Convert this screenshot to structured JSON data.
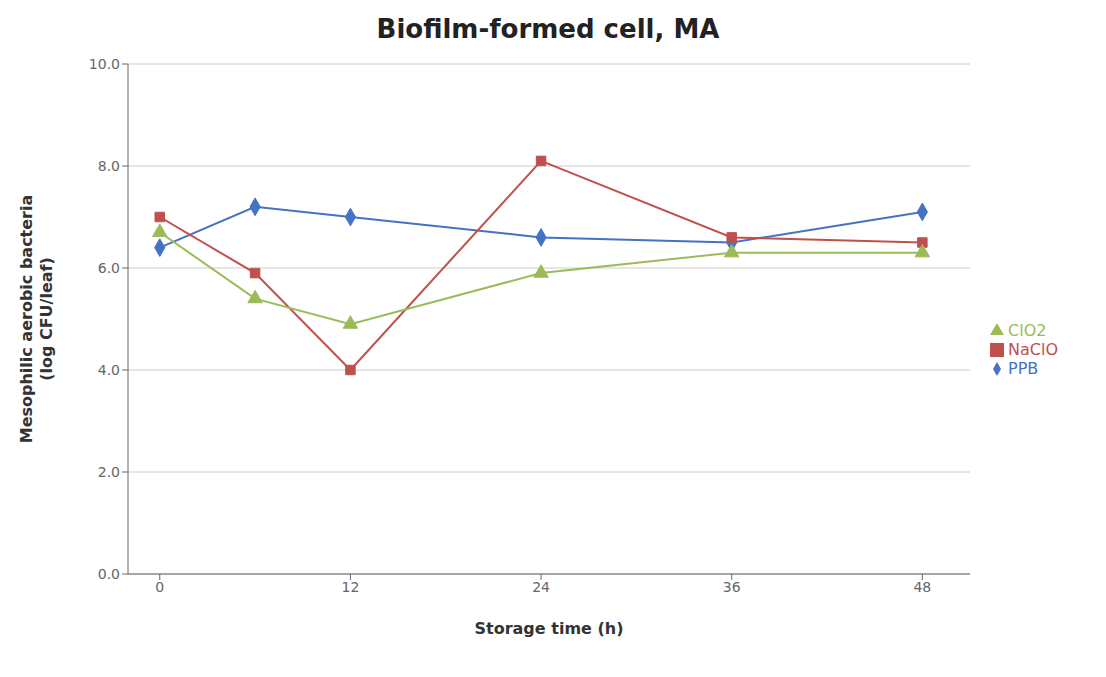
{
  "chart_data": {
    "type": "line",
    "title": "Biofilm-formed cell, MA",
    "xlabel": "Storage time (h)",
    "ylabel": "Mesophilic aerobic bacteria\n(log CFU/leaf)",
    "x": [
      0,
      6,
      12,
      24,
      36,
      48
    ],
    "series": [
      {
        "name": "PPB",
        "color": "#4472C4",
        "marker": "diamond",
        "values": [
          6.4,
          7.2,
          7.0,
          6.6,
          6.5,
          7.1
        ]
      },
      {
        "name": "NaClO",
        "color": "#C0504D",
        "marker": "square",
        "values": [
          7.0,
          5.9,
          4.0,
          8.1,
          6.6,
          6.5
        ]
      },
      {
        "name": "ClO2",
        "color": "#9BBB59",
        "marker": "triangle",
        "values": [
          6.7,
          5.4,
          4.9,
          5.9,
          6.3,
          6.3
        ]
      }
    ],
    "xlim": [
      -2,
      51
    ],
    "xticks": [
      0,
      12,
      24,
      36,
      48
    ],
    "ylim": [
      0,
      10
    ],
    "yticks": [
      {
        "value": 0,
        "label": "0.0"
      },
      {
        "value": 2,
        "label": "2.0"
      },
      {
        "value": 4,
        "label": "4.0"
      },
      {
        "value": 6,
        "label": "6.0"
      },
      {
        "value": 8,
        "label": "8.0"
      },
      {
        "value": 10,
        "label": "10.0"
      }
    ],
    "grid": true,
    "legend": "right"
  }
}
